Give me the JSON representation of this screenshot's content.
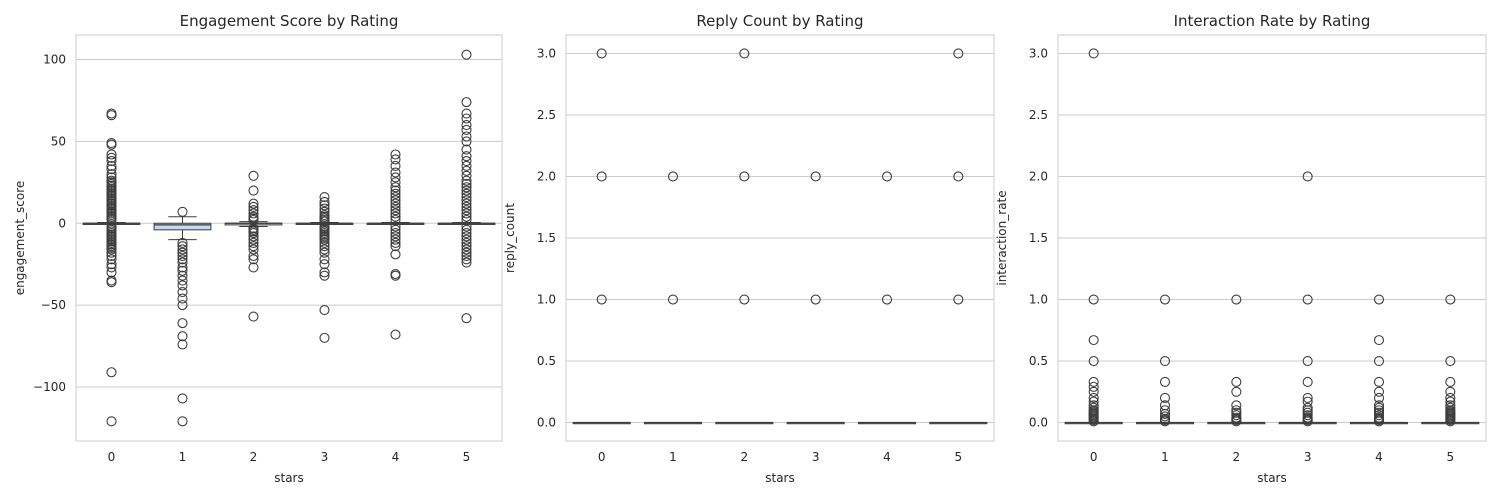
{
  "chart_data": [
    {
      "type": "box",
      "title": "Engagement Score by Rating",
      "xlabel": "stars",
      "ylabel": "engagement_score",
      "categories": [
        "0",
        "1",
        "2",
        "3",
        "4",
        "5"
      ],
      "ylim": [
        -133,
        115
      ],
      "yticks": [
        100,
        50,
        0,
        -50,
        -100
      ],
      "ytick_labels": [
        "100",
        "50",
        "0",
        "−50",
        "−100"
      ],
      "grid": true,
      "boxes": [
        {
          "whislo": -0.5,
          "q1": 0,
          "med": 0,
          "q3": 0,
          "whishi": 0.5,
          "fliers": [
            67,
            66,
            49,
            48,
            42,
            40,
            38,
            35,
            33,
            30,
            28,
            26,
            25,
            24,
            23,
            22,
            21,
            20,
            19,
            18,
            17,
            16,
            15,
            14,
            13,
            12,
            11,
            10,
            9,
            8,
            7,
            6,
            5,
            4,
            3,
            2,
            -2,
            -3,
            -4,
            -5,
            -6,
            -7,
            -8,
            -9,
            -10,
            -11,
            -12,
            -13,
            -14,
            -15,
            -16,
            -18,
            -20,
            -22,
            -25,
            -27,
            -30,
            -35,
            -36,
            -91,
            -121
          ]
        },
        {
          "whislo": -10,
          "q1": -4,
          "med": -1,
          "q3": 0,
          "whishi": 4,
          "fliers": [
            7,
            -12,
            -14,
            -16,
            -18,
            -20,
            -22,
            -24,
            -27,
            -29,
            -32,
            -35,
            -38,
            -42,
            -46,
            -50,
            -61,
            -69,
            -74,
            -107,
            -121
          ]
        },
        {
          "whislo": -2,
          "q1": -1,
          "med": 0,
          "q3": 0,
          "whishi": 1,
          "fliers": [
            29,
            20,
            12,
            10,
            8,
            6,
            4,
            3,
            2,
            -3,
            -4,
            -5,
            -6,
            -8,
            -10,
            -12,
            -14,
            -16,
            -20,
            -22,
            -27,
            -57
          ]
        },
        {
          "whislo": -0.5,
          "q1": 0,
          "med": 0,
          "q3": 0,
          "whishi": 0.5,
          "fliers": [
            16,
            13,
            11,
            9,
            7,
            5,
            4,
            3,
            2,
            1,
            -2,
            -3,
            -4,
            -5,
            -6,
            -7,
            -8,
            -9,
            -10,
            -12,
            -14,
            -16,
            -18,
            -22,
            -25,
            -30,
            -32,
            -53,
            -70
          ]
        },
        {
          "whislo": -0.5,
          "q1": 0,
          "med": 0,
          "q3": 0,
          "whishi": 0.5,
          "fliers": [
            42,
            39,
            35,
            31,
            28,
            25,
            22,
            20,
            18,
            16,
            14,
            12,
            10,
            8,
            6,
            4,
            2,
            -2,
            -4,
            -6,
            -8,
            -10,
            -12,
            -14,
            -19,
            -31,
            -32,
            -68
          ]
        },
        {
          "whislo": -0.5,
          "q1": 0,
          "med": 0,
          "q3": 0,
          "whishi": 0.5,
          "fliers": [
            103,
            74,
            67,
            64,
            60,
            57,
            53,
            50,
            45,
            41,
            38,
            35,
            32,
            29,
            26,
            24,
            22,
            20,
            18,
            16,
            14,
            12,
            10,
            8,
            6,
            4,
            2,
            -2,
            -4,
            -6,
            -8,
            -10,
            -12,
            -14,
            -16,
            -18,
            -20,
            -22,
            -24,
            -58
          ]
        }
      ]
    },
    {
      "type": "box",
      "title": "Reply Count by Rating",
      "xlabel": "stars",
      "ylabel": "reply_count",
      "categories": [
        "0",
        "1",
        "2",
        "3",
        "4",
        "5"
      ],
      "ylim": [
        -0.15,
        3.15
      ],
      "yticks": [
        3.0,
        2.5,
        2.0,
        1.5,
        1.0,
        0.5,
        0.0
      ],
      "ytick_labels": [
        "3.0",
        "2.5",
        "2.0",
        "1.5",
        "1.0",
        "0.5",
        "0.0"
      ],
      "grid": true,
      "boxes": [
        {
          "whislo": 0,
          "q1": 0,
          "med": 0,
          "q3": 0,
          "whishi": 0,
          "fliers": [
            3,
            2,
            1
          ]
        },
        {
          "whislo": 0,
          "q1": 0,
          "med": 0,
          "q3": 0,
          "whishi": 0,
          "fliers": [
            2,
            1
          ]
        },
        {
          "whislo": 0,
          "q1": 0,
          "med": 0,
          "q3": 0,
          "whishi": 0,
          "fliers": [
            3,
            2,
            1
          ]
        },
        {
          "whislo": 0,
          "q1": 0,
          "med": 0,
          "q3": 0,
          "whishi": 0,
          "fliers": [
            2,
            1
          ]
        },
        {
          "whislo": 0,
          "q1": 0,
          "med": 0,
          "q3": 0,
          "whishi": 0,
          "fliers": [
            2,
            1
          ]
        },
        {
          "whislo": 0,
          "q1": 0,
          "med": 0,
          "q3": 0,
          "whishi": 0,
          "fliers": [
            3,
            2,
            1
          ]
        }
      ]
    },
    {
      "type": "box",
      "title": "Interaction Rate by Rating",
      "xlabel": "stars",
      "ylabel": "interaction_rate",
      "categories": [
        "0",
        "1",
        "2",
        "3",
        "4",
        "5"
      ],
      "ylim": [
        -0.15,
        3.15
      ],
      "yticks": [
        3.0,
        2.5,
        2.0,
        1.5,
        1.0,
        0.5,
        0.0
      ],
      "ytick_labels": [
        "3.0",
        "2.5",
        "2.0",
        "1.5",
        "1.0",
        "0.5",
        "0.0"
      ],
      "grid": true,
      "boxes": [
        {
          "whislo": 0,
          "q1": 0,
          "med": 0,
          "q3": 0,
          "whishi": 0,
          "fliers": [
            3,
            1,
            0.67,
            0.5,
            0.33,
            0.29,
            0.25,
            0.2,
            0.17,
            0.14,
            0.12,
            0.1,
            0.09,
            0.08,
            0.07,
            0.06,
            0.05,
            0.04,
            0.03,
            0.02,
            0.01
          ]
        },
        {
          "whislo": 0,
          "q1": 0,
          "med": 0,
          "q3": 0,
          "whishi": 0,
          "fliers": [
            1,
            0.5,
            0.33,
            0.2,
            0.14,
            0.1,
            0.07,
            0.05,
            0.03,
            0.02,
            0.01
          ]
        },
        {
          "whislo": 0,
          "q1": 0,
          "med": 0,
          "q3": 0,
          "whishi": 0,
          "fliers": [
            1,
            0.33,
            0.25,
            0.14,
            0.1,
            0.08,
            0.06,
            0.04,
            0.03,
            0.02,
            0.01
          ]
        },
        {
          "whislo": 0,
          "q1": 0,
          "med": 0,
          "q3": 0,
          "whishi": 0,
          "fliers": [
            2,
            1,
            0.5,
            0.33,
            0.2,
            0.17,
            0.12,
            0.1,
            0.08,
            0.06,
            0.04,
            0.03,
            0.02,
            0.01
          ]
        },
        {
          "whislo": 0,
          "q1": 0,
          "med": 0,
          "q3": 0,
          "whishi": 0,
          "fliers": [
            1,
            0.67,
            0.5,
            0.33,
            0.25,
            0.2,
            0.14,
            0.12,
            0.1,
            0.08,
            0.06,
            0.04,
            0.03,
            0.02,
            0.01
          ]
        },
        {
          "whislo": 0,
          "q1": 0,
          "med": 0,
          "q3": 0,
          "whishi": 0,
          "fliers": [
            1,
            0.5,
            0.33,
            0.25,
            0.2,
            0.17,
            0.14,
            0.12,
            0.1,
            0.09,
            0.08,
            0.07,
            0.06,
            0.05,
            0.04,
            0.03,
            0.02,
            0.01
          ]
        }
      ]
    }
  ]
}
